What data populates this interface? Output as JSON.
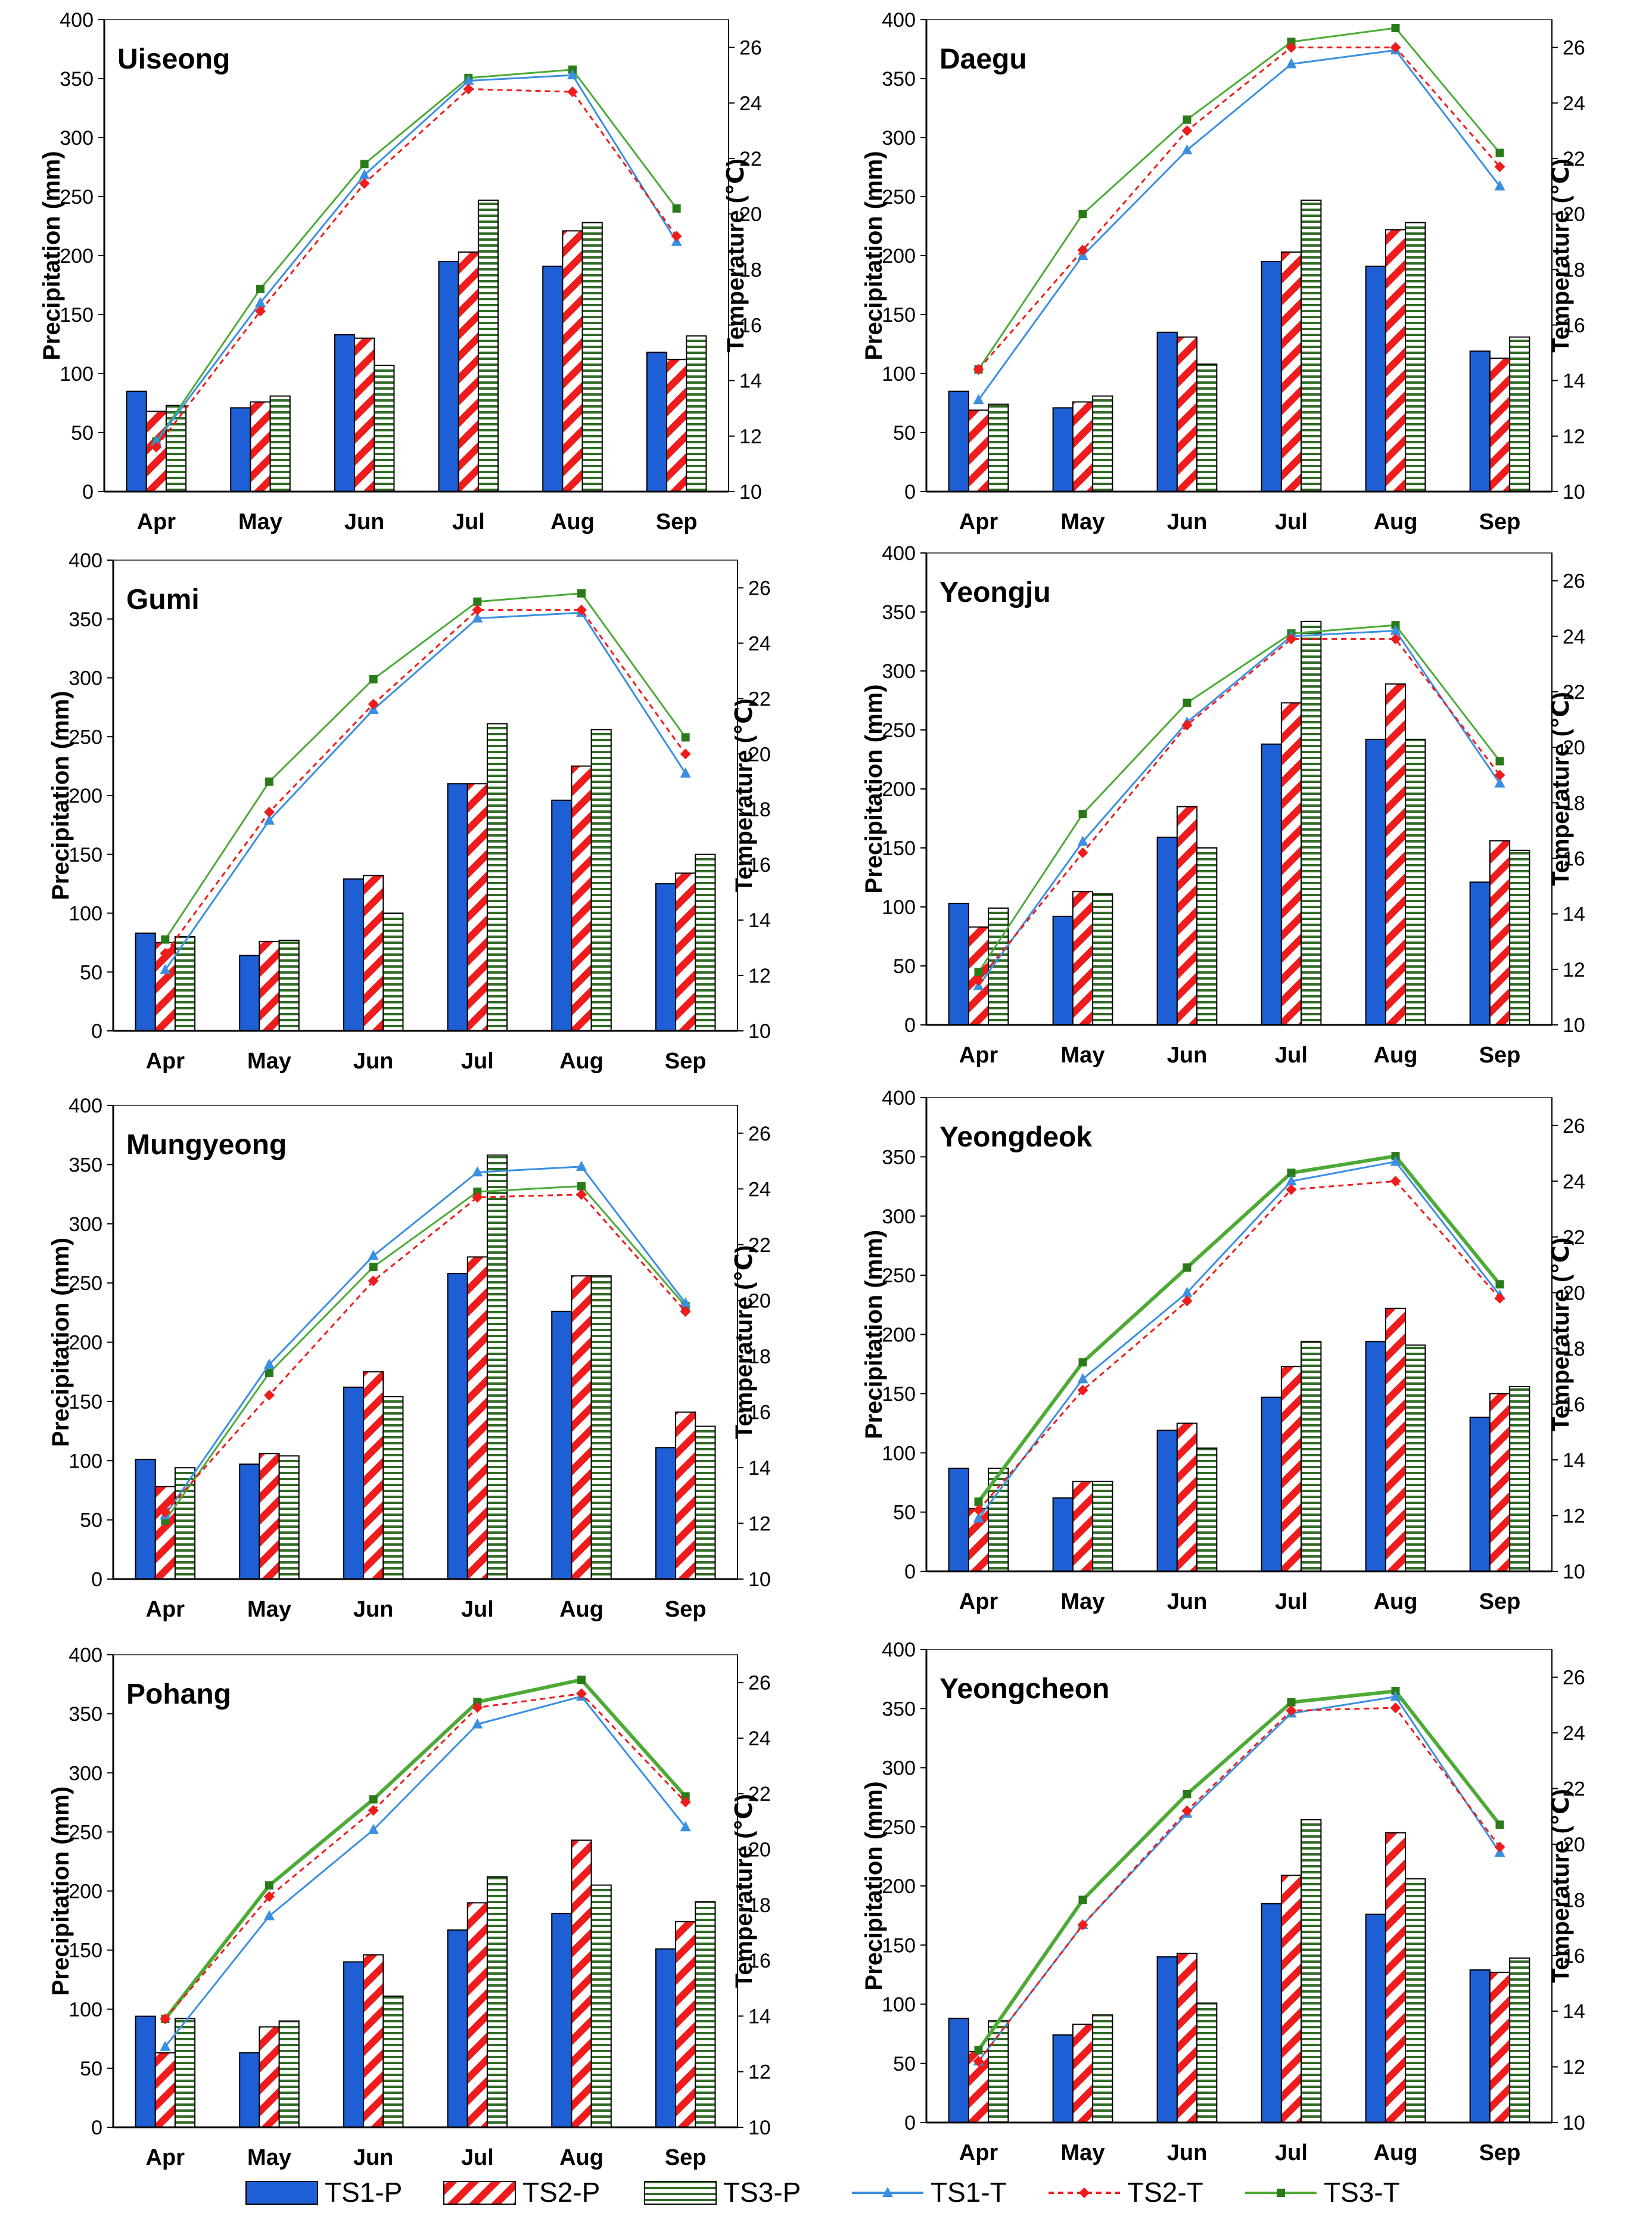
{
  "legend": [
    {
      "key": "TS1-P",
      "label": "TS1-P",
      "kind": "bar",
      "style": "solid"
    },
    {
      "key": "TS2-P",
      "label": "TS2-P",
      "kind": "bar",
      "style": "diag"
    },
    {
      "key": "TS3-P",
      "label": "TS3-P",
      "kind": "bar",
      "style": "horiz"
    },
    {
      "key": "TS1-T",
      "label": "TS1-T",
      "kind": "line",
      "marker": "triangle",
      "dash": false
    },
    {
      "key": "TS2-T",
      "label": "TS2-T",
      "kind": "line",
      "marker": "diamond",
      "dash": true
    },
    {
      "key": "TS3-T",
      "label": "TS3-T",
      "kind": "line",
      "marker": "square",
      "dash": false
    }
  ],
  "colors": {
    "TS1": "#1f5fd6",
    "TS1-T": "#3a8fe0",
    "TS2": "#ee1c1c",
    "TS3-T": "#4caa35",
    "TS3-marker": "#2a7a1a",
    "TS3-hatch": "#2f6b24",
    "axis": "#000000",
    "frame": "#555555"
  },
  "chart_data": [
    {
      "type": "bar+line",
      "title": "Uiseong",
      "categories": [
        "Apr",
        "May",
        "Jun",
        "Jul",
        "Aug",
        "Sep"
      ],
      "ylabel": "Precipitation (mm)",
      "y2label": "Temperature (℃)",
      "ylim": [
        0,
        400
      ],
      "yticks": [
        0,
        50,
        100,
        150,
        200,
        250,
        300,
        350,
        400
      ],
      "y2lim": [
        10,
        27
      ],
      "y2ticks": [
        10,
        12,
        14,
        16,
        18,
        20,
        22,
        24,
        26
      ],
      "precip": {
        "TS1-P": [
          85,
          71,
          133,
          195,
          191,
          118
        ],
        "TS2-P": [
          68,
          76,
          130,
          203,
          221,
          112
        ],
        "TS3-P": [
          73,
          81,
          107,
          247,
          228,
          132
        ]
      },
      "temp": {
        "TS1-T": [
          11.8,
          16.8,
          21.4,
          24.8,
          25.0,
          19.0
        ],
        "TS2-T": [
          11.6,
          16.5,
          21.1,
          24.5,
          24.4,
          19.2
        ],
        "TS3-T": [
          11.8,
          17.3,
          21.8,
          24.9,
          25.2,
          20.2
        ]
      },
      "t1style": "thin",
      "t3style": "thin"
    },
    {
      "type": "bar+line",
      "title": "Daegu",
      "categories": [
        "Apr",
        "May",
        "Jun",
        "Jul",
        "Aug",
        "Sep"
      ],
      "ylabel": "Precipitation (mm)",
      "y2label": "Temperature (℃)",
      "ylim": [
        0,
        400
      ],
      "yticks": [
        0,
        50,
        100,
        150,
        200,
        250,
        300,
        350,
        400
      ],
      "y2lim": [
        10,
        27
      ],
      "y2ticks": [
        10,
        12,
        14,
        16,
        18,
        20,
        22,
        24,
        26
      ],
      "precip": {
        "TS1-P": [
          85,
          71,
          135,
          195,
          191,
          119
        ],
        "TS2-P": [
          69,
          76,
          131,
          203,
          222,
          113
        ],
        "TS3-P": [
          74,
          81,
          108,
          247,
          228,
          131
        ]
      },
      "temp": {
        "TS1-T": [
          13.3,
          18.5,
          22.3,
          25.4,
          25.9,
          21.0
        ],
        "TS2-T": [
          14.4,
          18.7,
          23.0,
          26.0,
          26.0,
          21.7
        ],
        "TS3-T": [
          14.4,
          20.0,
          23.4,
          26.2,
          26.7,
          22.2
        ]
      },
      "t1style": "thin",
      "t3style": "thin"
    },
    {
      "type": "bar+line",
      "title": "Gumi",
      "categories": [
        "Apr",
        "May",
        "Jun",
        "Jul",
        "Aug",
        "Sep"
      ],
      "ylabel": "Precipitation (mm)",
      "y2label": "Temperature (℃)",
      "ylim": [
        0,
        400
      ],
      "yticks": [
        0,
        50,
        100,
        150,
        200,
        250,
        300,
        350,
        400
      ],
      "y2lim": [
        10,
        27
      ],
      "y2ticks": [
        10,
        12,
        14,
        16,
        18,
        20,
        22,
        24,
        26
      ],
      "precip": {
        "TS1-P": [
          83,
          64,
          129,
          210,
          196,
          125
        ],
        "TS2-P": [
          75,
          76,
          132,
          210,
          225,
          134
        ],
        "TS3-P": [
          80,
          77,
          100,
          261,
          256,
          150
        ]
      },
      "temp": {
        "TS1-T": [
          12.2,
          17.6,
          21.6,
          24.9,
          25.1,
          19.3
        ],
        "TS2-T": [
          12.8,
          17.9,
          21.8,
          25.2,
          25.2,
          20.0
        ],
        "TS3-T": [
          13.3,
          19.0,
          22.7,
          25.5,
          25.8,
          20.6
        ]
      },
      "t1style": "thin",
      "t3style": "thin"
    },
    {
      "type": "bar+line",
      "title": "Yeongju",
      "categories": [
        "Apr",
        "May",
        "Jun",
        "Jul",
        "Aug",
        "Sep"
      ],
      "ylabel": "Precipitation (mm)",
      "y2label": "Temperature (℃)",
      "ylim": [
        0,
        400
      ],
      "yticks": [
        0,
        50,
        100,
        150,
        200,
        250,
        300,
        350,
        400
      ],
      "y2lim": [
        10,
        27
      ],
      "y2ticks": [
        10,
        12,
        14,
        16,
        18,
        20,
        22,
        24,
        26
      ],
      "precip": {
        "TS1-P": [
          103,
          92,
          159,
          238,
          242,
          121
        ],
        "TS2-P": [
          83,
          113,
          185,
          273,
          289,
          156
        ],
        "TS3-P": [
          99,
          111,
          150,
          342,
          242,
          148
        ]
      },
      "temp": {
        "TS1-T": [
          11.4,
          16.6,
          20.9,
          24.0,
          24.2,
          18.7
        ],
        "TS2-T": [
          11.6,
          16.2,
          20.8,
          23.9,
          23.9,
          19.0
        ],
        "TS3-T": [
          11.9,
          17.6,
          21.6,
          24.1,
          24.4,
          19.5
        ]
      },
      "t1style": "thin",
      "t3style": "thin"
    },
    {
      "type": "bar+line",
      "title": "Mungyeong",
      "categories": [
        "Apr",
        "May",
        "Jun",
        "Jul",
        "Aug",
        "Sep"
      ],
      "ylabel": "Precipitation (mm)",
      "y2label": "Temperature (℃)",
      "ylim": [
        0,
        400
      ],
      "yticks": [
        0,
        50,
        100,
        150,
        200,
        250,
        300,
        350,
        400
      ],
      "y2lim": [
        10,
        27
      ],
      "y2ticks": [
        10,
        12,
        14,
        16,
        18,
        20,
        22,
        24,
        26
      ],
      "precip": {
        "TS1-P": [
          101,
          97,
          162,
          258,
          226,
          111
        ],
        "TS2-P": [
          78,
          106,
          175,
          272,
          256,
          141
        ],
        "TS3-P": [
          94,
          104,
          154,
          358,
          256,
          129
        ]
      },
      "temp": {
        "TS1-T": [
          12.3,
          17.7,
          21.6,
          24.6,
          24.8,
          19.9
        ],
        "TS2-T": [
          12.4,
          16.6,
          20.7,
          23.7,
          23.8,
          19.6
        ],
        "TS3-T": [
          12.1,
          17.4,
          21.2,
          23.9,
          24.1,
          19.8
        ]
      },
      "t1style": "thin",
      "t3style": "thin"
    },
    {
      "type": "bar+line",
      "title": "Yeongdeok",
      "categories": [
        "Apr",
        "May",
        "Jun",
        "Jul",
        "Aug",
        "Sep"
      ],
      "ylabel": "Precipitation (mm)",
      "y2label": "Temperature (℃)",
      "ylim": [
        0,
        400
      ],
      "yticks": [
        0,
        50,
        100,
        150,
        200,
        250,
        300,
        350,
        400
      ],
      "y2lim": [
        10,
        27
      ],
      "y2ticks": [
        10,
        12,
        14,
        16,
        18,
        20,
        22,
        24,
        26
      ],
      "precip": {
        "TS1-P": [
          87,
          62,
          119,
          147,
          194,
          130
        ],
        "TS2-P": [
          53,
          76,
          125,
          173,
          222,
          150
        ],
        "TS3-P": [
          87,
          76,
          104,
          194,
          191,
          156
        ]
      },
      "temp": {
        "TS1-T": [
          11.9,
          16.9,
          20.0,
          24.0,
          24.7,
          19.9
        ],
        "TS2-T": [
          12.2,
          16.5,
          19.7,
          23.7,
          24.0,
          19.8
        ],
        "TS3-T": [
          12.5,
          17.5,
          20.9,
          24.3,
          24.9,
          20.3
        ]
      },
      "t1style": "thin",
      "t3style": "thick"
    },
    {
      "type": "bar+line",
      "title": "Pohang",
      "categories": [
        "Apr",
        "May",
        "Jun",
        "Jul",
        "Aug",
        "Sep"
      ],
      "ylabel": "Precipitation (mm)",
      "y2label": "Temperature (℃)",
      "ylim": [
        0,
        400
      ],
      "yticks": [
        0,
        50,
        100,
        150,
        200,
        250,
        300,
        350,
        400
      ],
      "y2lim": [
        10,
        27
      ],
      "y2ticks": [
        10,
        12,
        14,
        16,
        18,
        20,
        22,
        24,
        26
      ],
      "precip": {
        "TS1-P": [
          94,
          63,
          140,
          167,
          181,
          151
        ],
        "TS2-P": [
          63,
          85,
          146,
          190,
          243,
          174
        ],
        "TS3-P": [
          92,
          90,
          111,
          212,
          205,
          191
        ]
      },
      "temp": {
        "TS1-T": [
          12.9,
          17.6,
          20.7,
          24.5,
          25.5,
          20.8
        ],
        "TS2-T": [
          13.9,
          18.3,
          21.4,
          25.1,
          25.6,
          21.7
        ],
        "TS3-T": [
          13.9,
          18.7,
          21.8,
          25.3,
          26.1,
          21.9
        ]
      },
      "t1style": "thin",
      "t3style": "thick"
    },
    {
      "type": "bar+line",
      "title": "Yeongcheon",
      "categories": [
        "Apr",
        "May",
        "Jun",
        "Jul",
        "Aug",
        "Sep"
      ],
      "ylabel": "Precipitation (mm)",
      "y2label": "Temperature (℃)",
      "ylim": [
        0,
        400
      ],
      "yticks": [
        0,
        50,
        100,
        150,
        200,
        250,
        300,
        350,
        400
      ],
      "y2lim": [
        10,
        27
      ],
      "y2ticks": [
        10,
        12,
        14,
        16,
        18,
        20,
        22,
        24,
        26
      ],
      "precip": {
        "TS1-P": [
          88,
          74,
          140,
          185,
          176,
          129
        ],
        "TS2-P": [
          60,
          83,
          143,
          209,
          245,
          127
        ],
        "TS3-P": [
          86,
          91,
          101,
          256,
          206,
          139
        ]
      },
      "temp": {
        "TS1-T": [
          12.2,
          17.1,
          21.1,
          24.7,
          25.3,
          19.7
        ],
        "TS2-T": [
          12.2,
          17.1,
          21.2,
          24.8,
          24.9,
          19.9
        ],
        "TS3-T": [
          12.6,
          18.0,
          21.8,
          25.1,
          25.5,
          20.7
        ]
      },
      "t1style": "thin",
      "t3style": "thick"
    }
  ]
}
